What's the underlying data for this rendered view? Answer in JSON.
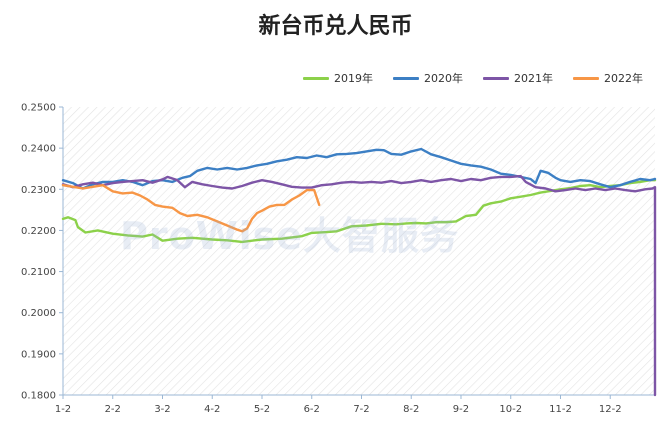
{
  "chart_data": {
    "type": "line",
    "title": "新台币兑人民币",
    "watermark": "ProWise大智服务",
    "x_ticks": [
      "1-2",
      "2-2",
      "3-2",
      "4-2",
      "5-2",
      "6-2",
      "7-2",
      "8-2",
      "9-2",
      "10-2",
      "11-2",
      "12-2"
    ],
    "y_ticks": [
      "0.2500",
      "0.2400",
      "0.2300",
      "0.2200",
      "0.2100",
      "0.2000",
      "0.1900",
      "0.1800"
    ],
    "ylim": [
      0.18,
      0.25
    ],
    "x_range_months": [
      0,
      11.9
    ],
    "grid": "hatched-background",
    "legend_position": "top-right",
    "series": [
      {
        "name": "2019年",
        "color": "#8cd14a",
        "points": [
          [
            0,
            0.2228
          ],
          [
            0.1,
            0.2232
          ],
          [
            0.25,
            0.2225
          ],
          [
            0.3,
            0.2208
          ],
          [
            0.45,
            0.2195
          ],
          [
            0.7,
            0.22
          ],
          [
            1,
            0.2192
          ],
          [
            1.3,
            0.2188
          ],
          [
            1.6,
            0.2185
          ],
          [
            1.8,
            0.219
          ],
          [
            2,
            0.2175
          ],
          [
            2.3,
            0.218
          ],
          [
            2.6,
            0.2182
          ],
          [
            3,
            0.2178
          ],
          [
            3.3,
            0.2176
          ],
          [
            3.6,
            0.2172
          ],
          [
            4,
            0.2178
          ],
          [
            4.4,
            0.218
          ],
          [
            4.8,
            0.2186
          ],
          [
            5,
            0.2194
          ],
          [
            5.3,
            0.2196
          ],
          [
            5.5,
            0.2198
          ],
          [
            5.8,
            0.221
          ],
          [
            6.1,
            0.2212
          ],
          [
            6.4,
            0.2216
          ],
          [
            6.7,
            0.2215
          ],
          [
            6.9,
            0.2217
          ],
          [
            7.1,
            0.2218
          ],
          [
            7.3,
            0.2217
          ],
          [
            7.5,
            0.222
          ],
          [
            7.7,
            0.222
          ],
          [
            7.9,
            0.2222
          ],
          [
            8.1,
            0.2235
          ],
          [
            8.3,
            0.2238
          ],
          [
            8.45,
            0.226
          ],
          [
            8.6,
            0.2266
          ],
          [
            8.8,
            0.227
          ],
          [
            9,
            0.2278
          ],
          [
            9.2,
            0.2282
          ],
          [
            9.4,
            0.2286
          ],
          [
            9.6,
            0.2292
          ],
          [
            9.8,
            0.2296
          ],
          [
            10,
            0.23
          ],
          [
            10.2,
            0.2303
          ],
          [
            10.4,
            0.2308
          ],
          [
            10.6,
            0.231
          ],
          [
            10.8,
            0.2305
          ],
          [
            11,
            0.2308
          ],
          [
            11.2,
            0.231
          ],
          [
            11.4,
            0.2315
          ],
          [
            11.6,
            0.2318
          ],
          [
            11.8,
            0.2322
          ],
          [
            11.9,
            0.2322
          ]
        ]
      },
      {
        "name": "2020年",
        "color": "#3c7fc4",
        "points": [
          [
            0,
            0.2322
          ],
          [
            0.2,
            0.2315
          ],
          [
            0.4,
            0.2302
          ],
          [
            0.6,
            0.2312
          ],
          [
            0.8,
            0.2318
          ],
          [
            1,
            0.2318
          ],
          [
            1.2,
            0.2322
          ],
          [
            1.4,
            0.2318
          ],
          [
            1.6,
            0.231
          ],
          [
            1.8,
            0.232
          ],
          [
            2,
            0.2322
          ],
          [
            2.2,
            0.2318
          ],
          [
            2.4,
            0.2328
          ],
          [
            2.55,
            0.2332
          ],
          [
            2.7,
            0.2345
          ],
          [
            2.9,
            0.2352
          ],
          [
            3.1,
            0.2348
          ],
          [
            3.3,
            0.2352
          ],
          [
            3.5,
            0.2348
          ],
          [
            3.7,
            0.2352
          ],
          [
            3.9,
            0.2358
          ],
          [
            4.1,
            0.2362
          ],
          [
            4.3,
            0.2368
          ],
          [
            4.5,
            0.2372
          ],
          [
            4.7,
            0.2378
          ],
          [
            4.9,
            0.2376
          ],
          [
            5.1,
            0.2382
          ],
          [
            5.3,
            0.2378
          ],
          [
            5.5,
            0.2385
          ],
          [
            5.7,
            0.2386
          ],
          [
            5.9,
            0.2388
          ],
          [
            6.1,
            0.2392
          ],
          [
            6.3,
            0.2396
          ],
          [
            6.45,
            0.2395
          ],
          [
            6.6,
            0.2386
          ],
          [
            6.8,
            0.2384
          ],
          [
            7,
            0.2392
          ],
          [
            7.2,
            0.2398
          ],
          [
            7.4,
            0.2385
          ],
          [
            7.6,
            0.2378
          ],
          [
            7.8,
            0.237
          ],
          [
            8,
            0.2362
          ],
          [
            8.2,
            0.2358
          ],
          [
            8.4,
            0.2355
          ],
          [
            8.6,
            0.2348
          ],
          [
            8.8,
            0.2338
          ],
          [
            9,
            0.2335
          ],
          [
            9.2,
            0.233
          ],
          [
            9.4,
            0.2325
          ],
          [
            9.5,
            0.2315
          ],
          [
            9.6,
            0.2345
          ],
          [
            9.75,
            0.234
          ],
          [
            9.9,
            0.2328
          ],
          [
            10,
            0.2322
          ],
          [
            10.2,
            0.2318
          ],
          [
            10.4,
            0.2322
          ],
          [
            10.6,
            0.232
          ],
          [
            10.8,
            0.2312
          ],
          [
            11,
            0.2305
          ],
          [
            11.2,
            0.231
          ],
          [
            11.4,
            0.2318
          ],
          [
            11.6,
            0.2325
          ],
          [
            11.8,
            0.2322
          ],
          [
            11.9,
            0.2325
          ]
        ]
      },
      {
        "name": "2021年",
        "color": "#7d55a6",
        "points": [
          [
            0,
            0.2312
          ],
          [
            0.2,
            0.2305
          ],
          [
            0.4,
            0.2312
          ],
          [
            0.6,
            0.2316
          ],
          [
            0.8,
            0.231
          ],
          [
            1,
            0.2315
          ],
          [
            1.2,
            0.2318
          ],
          [
            1.4,
            0.232
          ],
          [
            1.6,
            0.2322
          ],
          [
            1.8,
            0.2316
          ],
          [
            2,
            0.2324
          ],
          [
            2.1,
            0.233
          ],
          [
            2.3,
            0.2322
          ],
          [
            2.45,
            0.2305
          ],
          [
            2.6,
            0.2318
          ],
          [
            2.8,
            0.2312
          ],
          [
            3,
            0.2308
          ],
          [
            3.2,
            0.2304
          ],
          [
            3.4,
            0.2302
          ],
          [
            3.6,
            0.2308
          ],
          [
            3.8,
            0.2316
          ],
          [
            4,
            0.2322
          ],
          [
            4.2,
            0.2318
          ],
          [
            4.4,
            0.2312
          ],
          [
            4.6,
            0.2306
          ],
          [
            4.8,
            0.2304
          ],
          [
            5,
            0.2304
          ],
          [
            5.2,
            0.231
          ],
          [
            5.4,
            0.2312
          ],
          [
            5.6,
            0.2316
          ],
          [
            5.8,
            0.2318
          ],
          [
            6,
            0.2316
          ],
          [
            6.2,
            0.2318
          ],
          [
            6.4,
            0.2316
          ],
          [
            6.6,
            0.232
          ],
          [
            6.8,
            0.2315
          ],
          [
            7,
            0.2318
          ],
          [
            7.2,
            0.2322
          ],
          [
            7.4,
            0.2318
          ],
          [
            7.6,
            0.2322
          ],
          [
            7.8,
            0.2325
          ],
          [
            8,
            0.232
          ],
          [
            8.2,
            0.2325
          ],
          [
            8.4,
            0.2322
          ],
          [
            8.6,
            0.2328
          ],
          [
            8.8,
            0.233
          ],
          [
            9,
            0.233
          ],
          [
            9.2,
            0.2332
          ],
          [
            9.3,
            0.2318
          ],
          [
            9.5,
            0.2305
          ],
          [
            9.7,
            0.2302
          ],
          [
            9.9,
            0.2295
          ],
          [
            10.1,
            0.2298
          ],
          [
            10.3,
            0.2302
          ],
          [
            10.5,
            0.2298
          ],
          [
            10.7,
            0.2302
          ],
          [
            10.9,
            0.2298
          ],
          [
            11.1,
            0.2302
          ],
          [
            11.3,
            0.2298
          ],
          [
            11.5,
            0.2295
          ],
          [
            11.7,
            0.23
          ],
          [
            11.85,
            0.2302
          ],
          [
            11.9,
            0.2305
          ],
          [
            11.9,
            0.18
          ]
        ]
      },
      {
        "name": "2022年",
        "color": "#f79646",
        "points": [
          [
            0,
            0.231
          ],
          [
            0.2,
            0.2306
          ],
          [
            0.4,
            0.2302
          ],
          [
            0.6,
            0.2306
          ],
          [
            0.8,
            0.231
          ],
          [
            1,
            0.2295
          ],
          [
            1.2,
            0.229
          ],
          [
            1.4,
            0.2292
          ],
          [
            1.55,
            0.2285
          ],
          [
            1.7,
            0.2275
          ],
          [
            1.85,
            0.2262
          ],
          [
            2,
            0.2258
          ],
          [
            2.2,
            0.2255
          ],
          [
            2.35,
            0.2242
          ],
          [
            2.5,
            0.2235
          ],
          [
            2.7,
            0.2238
          ],
          [
            2.9,
            0.2232
          ],
          [
            3.1,
            0.2222
          ],
          [
            3.3,
            0.2212
          ],
          [
            3.5,
            0.2202
          ],
          [
            3.6,
            0.2198
          ],
          [
            3.7,
            0.2205
          ],
          [
            3.8,
            0.2228
          ],
          [
            3.9,
            0.2242
          ],
          [
            4,
            0.2248
          ],
          [
            4.15,
            0.2258
          ],
          [
            4.3,
            0.2262
          ],
          [
            4.45,
            0.2262
          ],
          [
            4.6,
            0.2275
          ],
          [
            4.75,
            0.2285
          ],
          [
            4.9,
            0.2298
          ],
          [
            5.05,
            0.2298
          ],
          [
            5.15,
            0.2262
          ]
        ]
      }
    ]
  }
}
